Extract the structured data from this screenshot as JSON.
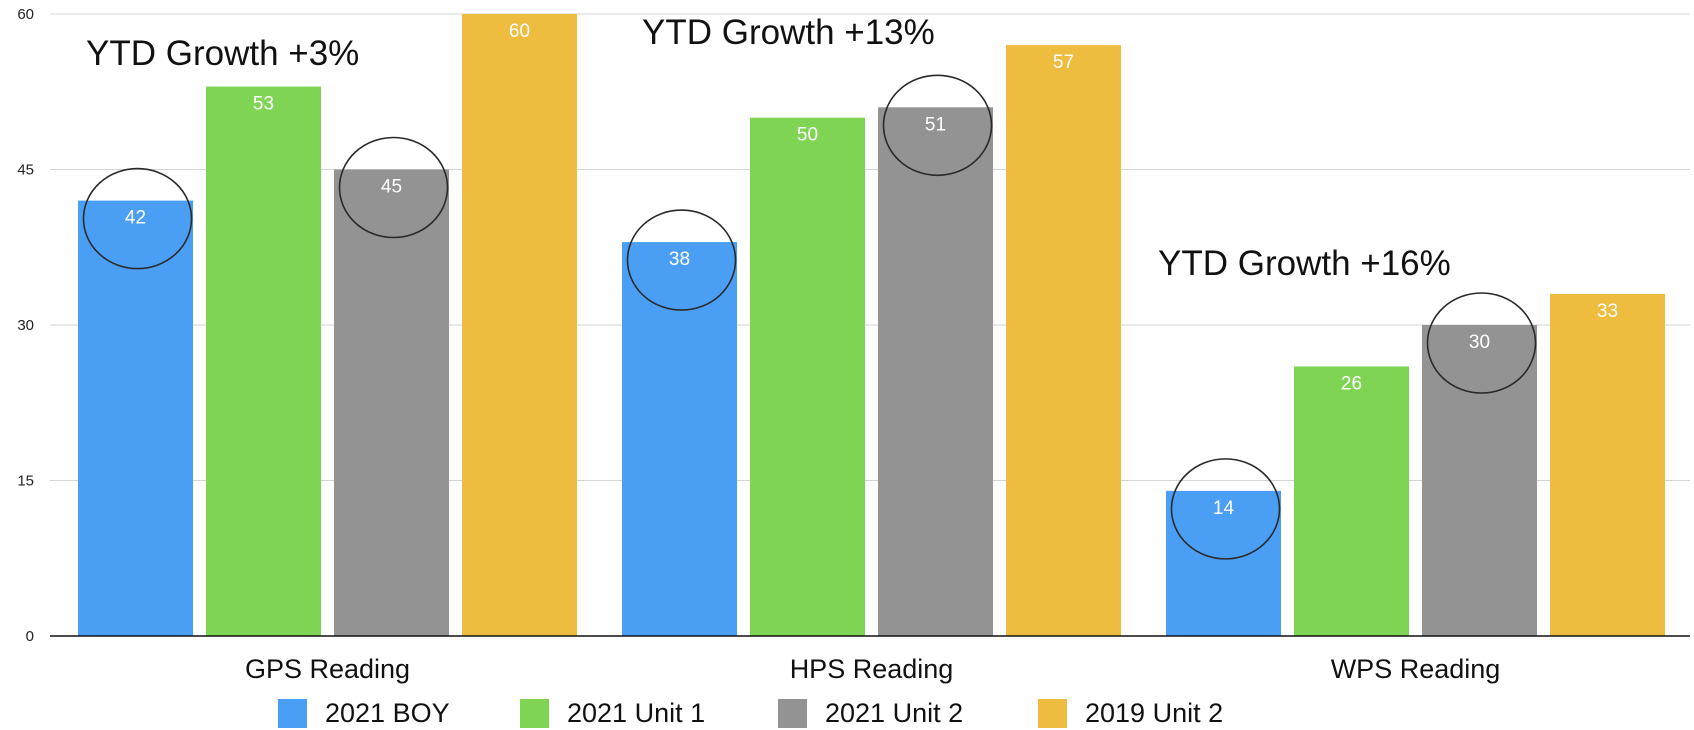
{
  "chart_data": {
    "type": "bar",
    "title": "",
    "xlabel": "",
    "ylabel": "",
    "categories": [
      "GPS Reading",
      "HPS Reading",
      "WPS Reading"
    ],
    "series": [
      {
        "name": "2021 BOY",
        "color": "#4a9ff5",
        "values": [
          42,
          38,
          14
        ]
      },
      {
        "name": "2021 Unit 1",
        "color": "#7fd553",
        "values": [
          53,
          50,
          26
        ]
      },
      {
        "name": "2021 Unit 2",
        "color": "#939393",
        "values": [
          45,
          51,
          30
        ]
      },
      {
        "name": "2019 Unit 2",
        "color": "#eebd3f",
        "values": [
          60,
          57,
          33
        ]
      }
    ],
    "ylim": [
      0,
      60
    ],
    "yticks": [
      "0",
      "15",
      "30",
      "45",
      "60"
    ],
    "grid": true,
    "legend": "bottom-center",
    "circled_series": [
      "2021 BOY",
      "2021 Unit 2"
    ],
    "annotations": [
      {
        "text": "YTD Growth +3%",
        "category": "GPS Reading"
      },
      {
        "text": "YTD Growth +13%",
        "category": "HPS Reading"
      },
      {
        "text": "YTD Growth +16%",
        "category": "WPS Reading"
      }
    ]
  }
}
